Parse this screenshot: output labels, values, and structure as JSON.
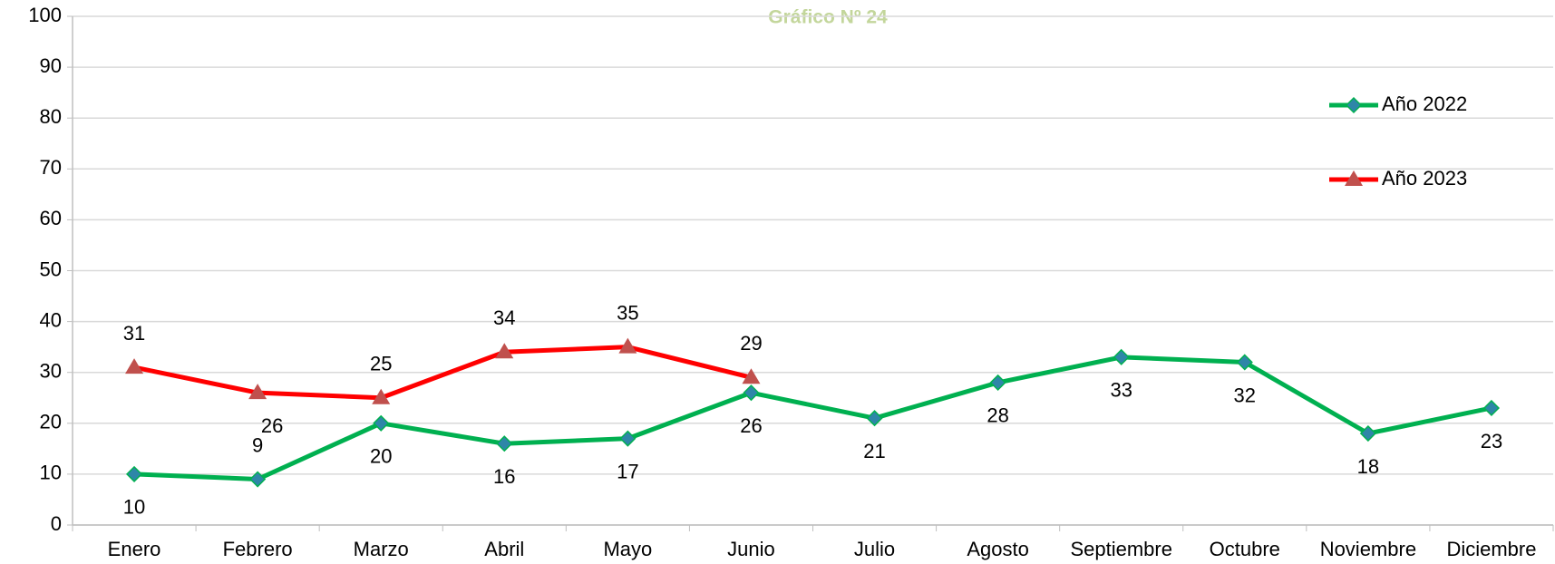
{
  "chart_data": {
    "type": "line",
    "title": "Gráfico Nº 24",
    "categories": [
      "Enero",
      "Febrero",
      "Marzo",
      "Abril",
      "Mayo",
      "Junio",
      "Julio",
      "Agosto",
      "Septiembre",
      "Octubre",
      "Noviembre",
      "Diciembre"
    ],
    "series": [
      {
        "name": "Año 2022",
        "color": "#00b050",
        "marker": "diamond",
        "marker_color": "#2e86a8",
        "values": [
          10,
          9,
          20,
          16,
          17,
          26,
          21,
          28,
          33,
          32,
          18,
          23
        ]
      },
      {
        "name": "Año 2023",
        "color": "#ff0000",
        "marker": "triangle",
        "marker_color": "#c0504d",
        "values": [
          31,
          26,
          25,
          34,
          35,
          29,
          null,
          null,
          null,
          null,
          null,
          null
        ]
      }
    ],
    "ylim": [
      0,
      100
    ],
    "yticks": [
      0,
      10,
      20,
      30,
      40,
      50,
      60,
      70,
      80,
      90,
      100
    ],
    "grid": true,
    "legend": "right"
  }
}
